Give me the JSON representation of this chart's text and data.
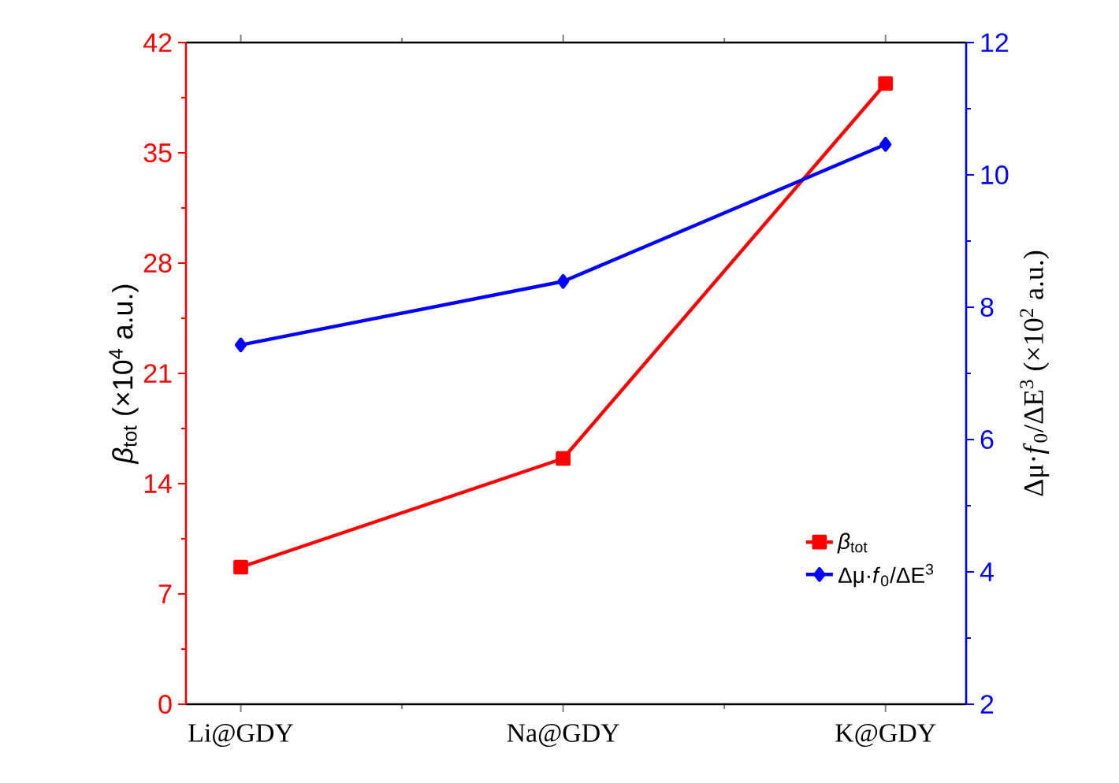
{
  "chart_data": {
    "type": "line",
    "ylabel": "*β*$_{tot}$ (×10$^{4}$ a.u.)",
    "y2label": "Δμ·*f*$_{0}$/ΔE$^{3}$ (×10$^{2}$ a.u.)",
    "categories": [
      "Li@GDY",
      "Na@GDY",
      "K@GDY"
    ],
    "ylim": [
      0,
      42
    ],
    "yticks": [
      0,
      7,
      14,
      21,
      28,
      35,
      42
    ],
    "y2lim": [
      2,
      12
    ],
    "y2ticks": [
      2,
      4,
      6,
      8,
      10,
      12
    ],
    "series": [
      {
        "name": "*β*$_{tot}$",
        "color": "#ff0000",
        "marker": "square",
        "values": [
          8.7,
          15.6,
          39.4
        ]
      },
      {
        "name": "Δμ·*f*$_{0}$/ΔE$^{3}$",
        "color": "#0000ff",
        "marker": "diamond",
        "axis": "y2",
        "values": [
          7.43,
          8.39,
          10.46
        ]
      }
    ],
    "legend": "bottom right",
    "grid": false,
    "line_style": "solid"
  }
}
